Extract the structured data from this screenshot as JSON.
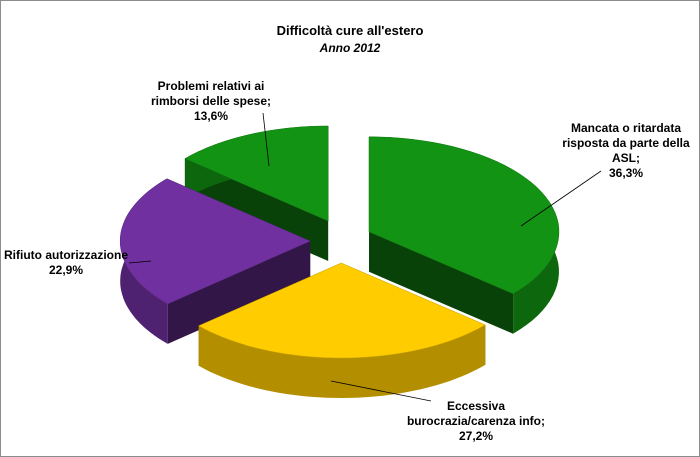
{
  "chart_data": {
    "type": "pie",
    "title": "Difficoltà cure all'estero",
    "subtitle": "Anno 2012",
    "categories": [
      "Mancata o ritardata risposta da parte della ASL;",
      "Eccessiva burocrazia/carenza info;",
      "Rifiuto autorizzazione",
      "Problemi relativi ai rimborsi delle spese;"
    ],
    "values": [
      36.3,
      27.2,
      22.9,
      13.6
    ],
    "value_labels": [
      "36,3%",
      "27,2%",
      "22,9%",
      "13,6%"
    ],
    "colors": [
      "#139313",
      "#ffcc00",
      "#7030a0",
      "#139313"
    ]
  }
}
